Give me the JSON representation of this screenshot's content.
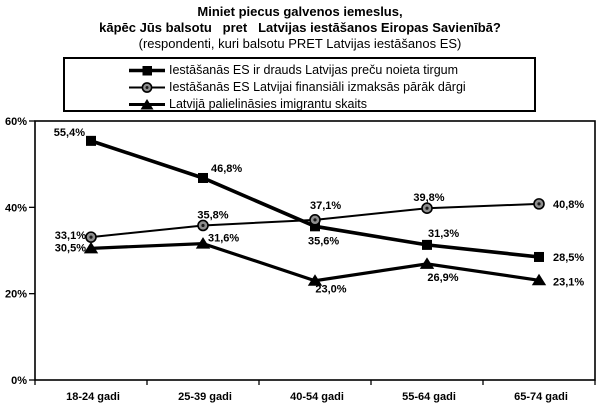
{
  "title": {
    "line1": "Miniet piecus galvenos iemeslus,",
    "line2": "kāpēc Jūs balsotu   pret   Latvijas iestāšanos Eiropas Savienībā?",
    "line3": "(respondenti, kuri balsotu PRET Latvijas iestāšanos ES)"
  },
  "colors": {
    "series_line": "#000000",
    "circle_fill": "#8f8f8f",
    "background": "#ffffff"
  },
  "chart_data": {
    "type": "line",
    "categories": [
      "18-24 gadi",
      "25-39 gadi",
      "40-54 gadi",
      "55-64 gadi",
      "65-74 gadi"
    ],
    "series": [
      {
        "name": "Iestāšanās ES ir drauds Latvijas preču noieta tirgum",
        "marker": "square",
        "values": [
          55.4,
          46.8,
          35.6,
          31.3,
          28.5
        ],
        "point_labels": [
          "55,4%",
          "46,8%",
          "35,6%",
          "31,3%",
          "28,5%"
        ]
      },
      {
        "name": "Iestāšanās ES Latvijai finansiāli izmaksās pārāk dārgi",
        "marker": "circle",
        "values": [
          33.1,
          35.8,
          37.1,
          39.8,
          40.8
        ],
        "point_labels": [
          "33,1%",
          "35,8%",
          "37,1%",
          "39,8%",
          "40,8%"
        ]
      },
      {
        "name": "Latvijā palielināsies imigrantu skaits",
        "marker": "triangle",
        "values": [
          30.5,
          31.6,
          23.0,
          26.9,
          23.1
        ],
        "point_labels": [
          "30,5%",
          "31,6%",
          "23,0%",
          "26,9%",
          "23,1%"
        ]
      }
    ],
    "ylim": [
      0,
      60
    ],
    "yticks": [
      {
        "value": 0,
        "label": "0%"
      },
      {
        "value": 20,
        "label": "20%"
      },
      {
        "value": 40,
        "label": "40%"
      },
      {
        "value": 60,
        "label": "60%"
      }
    ],
    "grid": false,
    "legend_position": "top",
    "label_layout": [
      [
        [
          -6,
          -5,
          "end"
        ],
        [
          8,
          -6,
          "start"
        ],
        [
          -7,
          18,
          "start"
        ],
        [
          1,
          -8,
          "start"
        ],
        [
          14,
          4,
          "start"
        ]
      ],
      [
        [
          -5,
          2,
          "end"
        ],
        [
          10,
          -7,
          "middle"
        ],
        [
          -5,
          -11,
          "start"
        ],
        [
          2,
          -7,
          "middle"
        ],
        [
          14,
          4,
          "start"
        ]
      ],
      [
        [
          -5,
          3,
          "end"
        ],
        [
          5,
          -2,
          "start"
        ],
        [
          16,
          12,
          "middle"
        ],
        [
          16,
          17,
          "middle"
        ],
        [
          14,
          5,
          "start"
        ]
      ]
    ]
  }
}
